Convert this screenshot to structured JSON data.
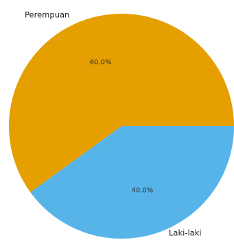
{
  "chart_data": {
    "type": "pie",
    "title": "",
    "start_angle_deg": 0,
    "direction": "counterclockwise",
    "slices": [
      {
        "label": "Perempuan",
        "value": 60.0,
        "pct_label": "60.0%",
        "color": "#E69F00"
      },
      {
        "label": "Laki-laki",
        "value": 40.0,
        "pct_label": "40.0%",
        "color": "#56B4E9"
      }
    ]
  }
}
